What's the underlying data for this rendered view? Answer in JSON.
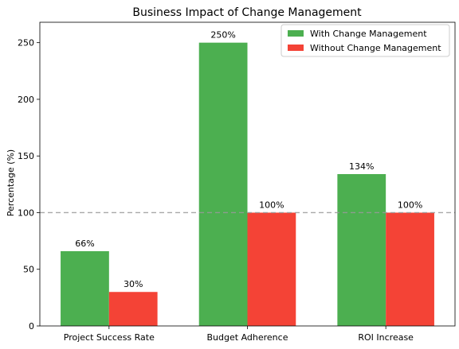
{
  "chart_data": {
    "type": "bar",
    "title": "Business Impact of Change Management",
    "xlabel": "",
    "ylabel": "Percentage (%)",
    "categories": [
      "Project Success Rate",
      "Budget Adherence",
      "ROI Increase"
    ],
    "series": [
      {
        "name": "With Change Management",
        "values": [
          66,
          250,
          134
        ],
        "labels": [
          "66%",
          "250%",
          "134%"
        ],
        "color": "#4caf50"
      },
      {
        "name": "Without Change Management",
        "values": [
          30,
          100,
          100
        ],
        "labels": [
          "30%",
          "100%",
          "100%"
        ],
        "color": "#f44336"
      }
    ],
    "ylim": [
      0,
      268
    ],
    "yticks": [
      0,
      50,
      100,
      150,
      200,
      250
    ],
    "reference_line": {
      "value": 100,
      "style": "dashed",
      "color": "#999999"
    },
    "grid": false,
    "legend": "top-right"
  }
}
